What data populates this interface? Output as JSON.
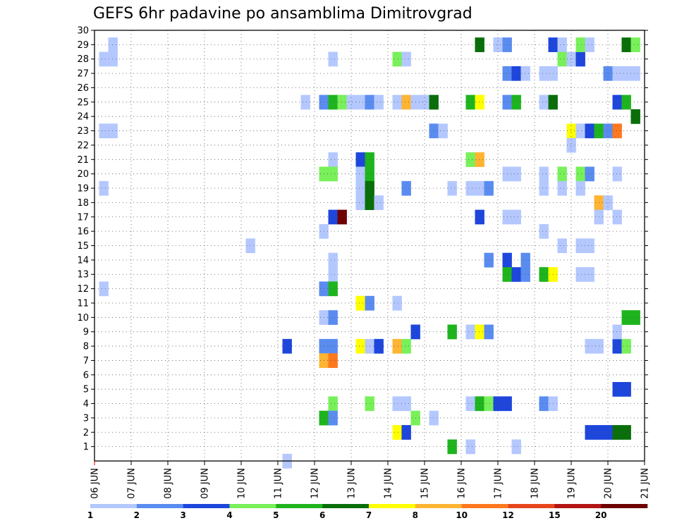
{
  "chart_data": {
    "type": "heatmap",
    "title": "GEFS 6hr padavine po ansamblima Dimitrovgrad",
    "xlabel": "",
    "ylabel": "",
    "x_tick_labels": [
      "06 JUN",
      "07 JUN",
      "08 JUN",
      "09 JUN",
      "10 JUN",
      "11 JUN",
      "12 JUN",
      "13 JUN",
      "14 JUN",
      "15 JUN",
      "16 JUN",
      "17 JUN",
      "18 JUN",
      "19 JUN",
      "20 JUN",
      "21 JUN"
    ],
    "xlim": [
      0,
      15
    ],
    "ylim": [
      0,
      30
    ],
    "y_tick_labels": [
      1,
      2,
      3,
      4,
      5,
      6,
      7,
      8,
      9,
      10,
      11,
      12,
      13,
      14,
      15,
      16,
      17,
      18,
      19,
      20,
      21,
      22,
      23,
      24,
      25,
      26,
      27,
      28,
      29,
      30
    ],
    "grid": true,
    "time_step_days": 0.25,
    "colorbar": {
      "labels": [
        "1",
        "2",
        "3",
        "4",
        "5",
        "6",
        "7",
        "8",
        "10",
        "12",
        "15",
        "20"
      ],
      "colors": [
        "#b4c8ff",
        "#5a8cf0",
        "#1e46dc",
        "#78f05a",
        "#1eb41e",
        "#0a6e0a",
        "#ffff00",
        "#ffb432",
        "#ff781e",
        "#e6461e",
        "#b41414",
        "#6e0000"
      ]
    },
    "legend": "bottom colorbar, precipitation classes (mm)",
    "cells": [
      {
        "m": 29,
        "t": 0.5,
        "c": 0
      },
      {
        "m": 28,
        "t": 0.25,
        "c": 0
      },
      {
        "m": 28,
        "t": 0.5,
        "c": 0
      },
      {
        "m": 23,
        "t": 0.25,
        "c": 0
      },
      {
        "m": 23,
        "t": 0.5,
        "c": 0
      },
      {
        "m": 19,
        "t": 0.25,
        "c": 0
      },
      {
        "m": 12,
        "t": 0.25,
        "c": 0
      },
      {
        "m": 15,
        "t": 4.25,
        "c": 0
      },
      {
        "m": 0,
        "t": 5.25,
        "c": 0
      },
      {
        "m": 8,
        "t": 5.25,
        "c": 2
      },
      {
        "m": 25,
        "t": 5.75,
        "c": 0
      },
      {
        "m": 28,
        "t": 6.5,
        "c": 0
      },
      {
        "m": 25,
        "t": 6.25,
        "c": 1
      },
      {
        "m": 25,
        "t": 6.5,
        "c": 4
      },
      {
        "m": 25,
        "t": 6.75,
        "c": 3
      },
      {
        "m": 25,
        "t": 7.0,
        "c": 0
      },
      {
        "m": 25,
        "t": 7.25,
        "c": 0
      },
      {
        "m": 25,
        "t": 7.5,
        "c": 1
      },
      {
        "m": 25,
        "t": 7.75,
        "c": 0
      },
      {
        "m": 21,
        "t": 6.5,
        "c": 0
      },
      {
        "m": 20,
        "t": 6.25,
        "c": 3
      },
      {
        "m": 20,
        "t": 6.5,
        "c": 3
      },
      {
        "m": 17,
        "t": 6.5,
        "c": 2
      },
      {
        "m": 17,
        "t": 6.75,
        "c": 11
      },
      {
        "m": 16,
        "t": 6.25,
        "c": 0
      },
      {
        "m": 14,
        "t": 6.5,
        "c": 0
      },
      {
        "m": 13,
        "t": 6.5,
        "c": 0
      },
      {
        "m": 12,
        "t": 6.25,
        "c": 1
      },
      {
        "m": 12,
        "t": 6.5,
        "c": 4
      },
      {
        "m": 10,
        "t": 6.25,
        "c": 0
      },
      {
        "m": 10,
        "t": 6.5,
        "c": 1
      },
      {
        "m": 8,
        "t": 6.25,
        "c": 1
      },
      {
        "m": 8,
        "t": 6.5,
        "c": 1
      },
      {
        "m": 7,
        "t": 6.25,
        "c": 7
      },
      {
        "m": 7,
        "t": 6.5,
        "c": 8
      },
      {
        "m": 4,
        "t": 6.5,
        "c": 3
      },
      {
        "m": 3,
        "t": 6.25,
        "c": 4
      },
      {
        "m": 3,
        "t": 6.5,
        "c": 1
      },
      {
        "m": 21,
        "t": 7.25,
        "c": 2
      },
      {
        "m": 21,
        "t": 7.5,
        "c": 4
      },
      {
        "m": 20,
        "t": 7.25,
        "c": 0
      },
      {
        "m": 20,
        "t": 7.5,
        "c": 4
      },
      {
        "m": 19,
        "t": 7.25,
        "c": 0
      },
      {
        "m": 19,
        "t": 7.5,
        "c": 5
      },
      {
        "m": 18,
        "t": 7.25,
        "c": 0
      },
      {
        "m": 18,
        "t": 7.5,
        "c": 5
      },
      {
        "m": 18,
        "t": 7.75,
        "c": 0
      },
      {
        "m": 11,
        "t": 7.25,
        "c": 6
      },
      {
        "m": 11,
        "t": 7.5,
        "c": 1
      },
      {
        "m": 8,
        "t": 7.25,
        "c": 6
      },
      {
        "m": 8,
        "t": 7.5,
        "c": 0
      },
      {
        "m": 8,
        "t": 7.75,
        "c": 2
      },
      {
        "m": 4,
        "t": 7.5,
        "c": 3
      },
      {
        "m": 28,
        "t": 8.25,
        "c": 3
      },
      {
        "m": 28,
        "t": 8.5,
        "c": 0
      },
      {
        "m": 25,
        "t": 8.25,
        "c": 0
      },
      {
        "m": 25,
        "t": 8.5,
        "c": 7
      },
      {
        "m": 25,
        "t": 8.75,
        "c": 0
      },
      {
        "m": 25,
        "t": 9.0,
        "c": 0
      },
      {
        "m": 25,
        "t": 9.25,
        "c": 5
      },
      {
        "m": 19,
        "t": 8.5,
        "c": 1
      },
      {
        "m": 11,
        "t": 8.25,
        "c": 0
      },
      {
        "m": 9,
        "t": 8.75,
        "c": 2
      },
      {
        "m": 8,
        "t": 8.25,
        "c": 7
      },
      {
        "m": 8,
        "t": 8.5,
        "c": 3
      },
      {
        "m": 4,
        "t": 8.25,
        "c": 0
      },
      {
        "m": 4,
        "t": 8.5,
        "c": 0
      },
      {
        "m": 3,
        "t": 8.75,
        "c": 3
      },
      {
        "m": 3,
        "t": 9.25,
        "c": 0
      },
      {
        "m": 2,
        "t": 8.25,
        "c": 6
      },
      {
        "m": 2,
        "t": 8.5,
        "c": 2
      },
      {
        "m": 23,
        "t": 9.25,
        "c": 1
      },
      {
        "m": 23,
        "t": 9.5,
        "c": 0
      },
      {
        "m": 19,
        "t": 9.75,
        "c": 0
      },
      {
        "m": 9,
        "t": 9.75,
        "c": 4
      },
      {
        "m": 1,
        "t": 9.75,
        "c": 4
      },
      {
        "m": 29,
        "t": 10.5,
        "c": 5
      },
      {
        "m": 25,
        "t": 10.25,
        "c": 4
      },
      {
        "m": 25,
        "t": 10.5,
        "c": 6
      },
      {
        "m": 21,
        "t": 10.25,
        "c": 3
      },
      {
        "m": 21,
        "t": 10.5,
        "c": 7
      },
      {
        "m": 19,
        "t": 10.25,
        "c": 0
      },
      {
        "m": 19,
        "t": 10.5,
        "c": 0
      },
      {
        "m": 19,
        "t": 10.75,
        "c": 1
      },
      {
        "m": 17,
        "t": 10.5,
        "c": 2
      },
      {
        "m": 9,
        "t": 10.25,
        "c": 0
      },
      {
        "m": 9,
        "t": 10.5,
        "c": 6
      },
      {
        "m": 9,
        "t": 10.75,
        "c": 1
      },
      {
        "m": 4,
        "t": 10.25,
        "c": 0
      },
      {
        "m": 4,
        "t": 10.5,
        "c": 4
      },
      {
        "m": 4,
        "t": 10.75,
        "c": 3
      },
      {
        "m": 1,
        "t": 10.25,
        "c": 0
      },
      {
        "m": 29,
        "t": 11.0,
        "c": 0
      },
      {
        "m": 29,
        "t": 11.25,
        "c": 1
      },
      {
        "m": 27,
        "t": 11.25,
        "c": 1
      },
      {
        "m": 27,
        "t": 11.5,
        "c": 2
      },
      {
        "m": 27,
        "t": 11.75,
        "c": 0
      },
      {
        "m": 25,
        "t": 11.25,
        "c": 1
      },
      {
        "m": 25,
        "t": 11.5,
        "c": 4
      },
      {
        "m": 20,
        "t": 11.25,
        "c": 0
      },
      {
        "m": 20,
        "t": 11.5,
        "c": 0
      },
      {
        "m": 17,
        "t": 11.25,
        "c": 0
      },
      {
        "m": 17,
        "t": 11.5,
        "c": 0
      },
      {
        "m": 14,
        "t": 10.75,
        "c": 1
      },
      {
        "m": 14,
        "t": 11.25,
        "c": 2
      },
      {
        "m": 14,
        "t": 11.75,
        "c": 1
      },
      {
        "m": 13,
        "t": 11.25,
        "c": 4
      },
      {
        "m": 13,
        "t": 11.5,
        "c": 2
      },
      {
        "m": 4,
        "t": 11.0,
        "c": 2
      },
      {
        "m": 4,
        "t": 11.25,
        "c": 2
      },
      {
        "m": 1,
        "t": 11.5,
        "c": 0
      },
      {
        "m": 29,
        "t": 12.5,
        "c": 2
      },
      {
        "m": 29,
        "t": 12.75,
        "c": 0
      },
      {
        "m": 28,
        "t": 12.75,
        "c": 3
      },
      {
        "m": 28,
        "t": 13.0,
        "c": 0
      },
      {
        "m": 28,
        "t": 13.25,
        "c": 2
      },
      {
        "m": 27,
        "t": 12.25,
        "c": 0
      },
      {
        "m": 27,
        "t": 12.5,
        "c": 0
      },
      {
        "m": 25,
        "t": 12.25,
        "c": 0
      },
      {
        "m": 25,
        "t": 12.5,
        "c": 5
      },
      {
        "m": 23,
        "t": 13.0,
        "c": 6
      },
      {
        "m": 23,
        "t": 13.25,
        "c": 0
      },
      {
        "m": 23,
        "t": 13.5,
        "c": 2
      },
      {
        "m": 23,
        "t": 13.75,
        "c": 4
      },
      {
        "m": 23,
        "t": 14.0,
        "c": 1
      },
      {
        "m": 23,
        "t": 14.25,
        "c": 8
      },
      {
        "m": 22,
        "t": 13.0,
        "c": 0
      },
      {
        "m": 20,
        "t": 12.25,
        "c": 0
      },
      {
        "m": 20,
        "t": 12.75,
        "c": 3
      },
      {
        "m": 20,
        "t": 13.25,
        "c": 3
      },
      {
        "m": 20,
        "t": 13.5,
        "c": 1
      },
      {
        "m": 20,
        "t": 14.25,
        "c": 0
      },
      {
        "m": 19,
        "t": 12.25,
        "c": 0
      },
      {
        "m": 19,
        "t": 12.75,
        "c": 0
      },
      {
        "m": 19,
        "t": 13.25,
        "c": 0
      },
      {
        "m": 18,
        "t": 13.75,
        "c": 7
      },
      {
        "m": 18,
        "t": 14.0,
        "c": 0
      },
      {
        "m": 17,
        "t": 13.75,
        "c": 0
      },
      {
        "m": 17,
        "t": 14.25,
        "c": 0
      },
      {
        "m": 16,
        "t": 12.25,
        "c": 0
      },
      {
        "m": 15,
        "t": 12.75,
        "c": 0
      },
      {
        "m": 15,
        "t": 13.25,
        "c": 0
      },
      {
        "m": 15,
        "t": 13.5,
        "c": 0
      },
      {
        "m": 13,
        "t": 11.75,
        "c": 1
      },
      {
        "m": 13,
        "t": 12.25,
        "c": 4
      },
      {
        "m": 13,
        "t": 12.5,
        "c": 6
      },
      {
        "m": 13,
        "t": 13.25,
        "c": 0
      },
      {
        "m": 13,
        "t": 13.5,
        "c": 0
      },
      {
        "m": 8,
        "t": 13.5,
        "c": 0
      },
      {
        "m": 8,
        "t": 13.75,
        "c": 0
      },
      {
        "m": 8,
        "t": 14.25,
        "c": 2
      },
      {
        "m": 8,
        "t": 14.5,
        "c": 3
      },
      {
        "m": 9,
        "t": 14.25,
        "c": 0
      },
      {
        "m": 4,
        "t": 12.25,
        "c": 1
      },
      {
        "m": 4,
        "t": 12.5,
        "c": 0
      },
      {
        "m": 2,
        "t": 13.5,
        "c": 2
      },
      {
        "m": 2,
        "t": 13.75,
        "c": 2
      },
      {
        "m": 2,
        "t": 14.0,
        "c": 2
      },
      {
        "m": 2,
        "t": 14.25,
        "c": 5
      },
      {
        "m": 2,
        "t": 14.5,
        "c": 5
      },
      {
        "m": 29,
        "t": 13.25,
        "c": 3
      },
      {
        "m": 29,
        "t": 13.5,
        "c": 0
      },
      {
        "m": 29,
        "t": 14.5,
        "c": 5
      },
      {
        "m": 29,
        "t": 14.75,
        "c": 3
      },
      {
        "m": 27,
        "t": 14.0,
        "c": 1
      },
      {
        "m": 27,
        "t": 14.25,
        "c": 0
      },
      {
        "m": 27,
        "t": 14.5,
        "c": 0
      },
      {
        "m": 27,
        "t": 14.75,
        "c": 0
      },
      {
        "m": 25,
        "t": 14.25,
        "c": 2
      },
      {
        "m": 25,
        "t": 14.5,
        "c": 4
      },
      {
        "m": 24,
        "t": 14.75,
        "c": 5
      },
      {
        "m": 10,
        "t": 14.5,
        "c": 4
      },
      {
        "m": 10,
        "t": 14.75,
        "c": 4
      },
      {
        "m": 5,
        "t": 14.25,
        "c": 2
      },
      {
        "m": 5,
        "t": 14.5,
        "c": 2
      }
    ]
  }
}
